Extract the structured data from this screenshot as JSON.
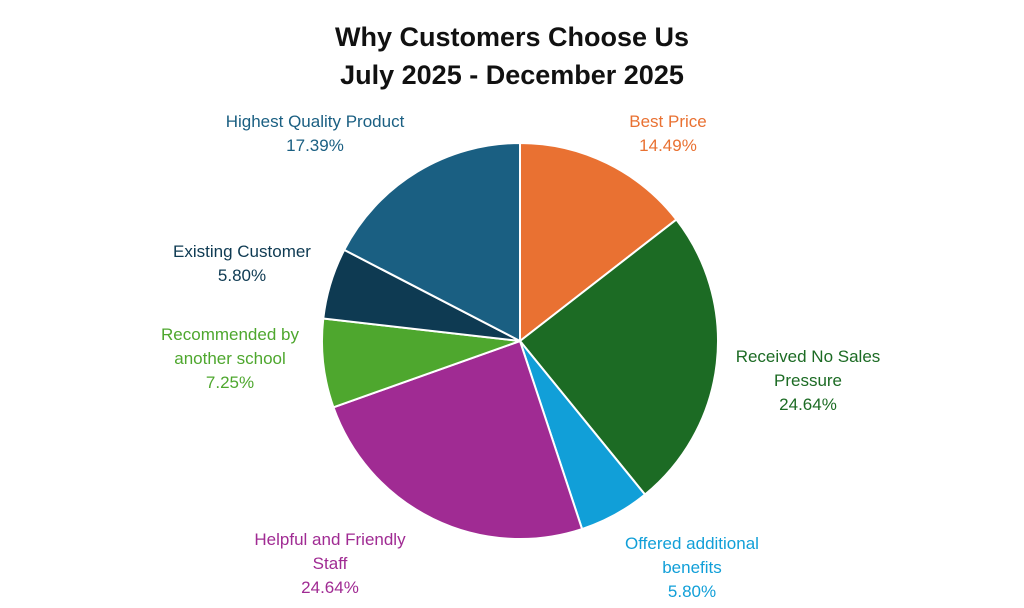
{
  "chart_data": {
    "type": "pie",
    "title": "Why Customers Choose Us",
    "subtitle": "July 2025 - December 2025",
    "slices": [
      {
        "label": [
          "Best Price"
        ],
        "value": 14.49,
        "value_label": "14.49%",
        "color": "#E97132"
      },
      {
        "label": [
          "Received No Sales",
          "Pressure"
        ],
        "value": 24.64,
        "value_label": "24.64%",
        "color": "#1C6B24"
      },
      {
        "label": [
          "Offered additional",
          "benefits"
        ],
        "value": 5.8,
        "value_label": "5.80%",
        "color": "#119FD8"
      },
      {
        "label": [
          "Helpful and Friendly",
          "Staff"
        ],
        "value": 24.64,
        "value_label": "24.64%",
        "color": "#A02B93"
      },
      {
        "label": [
          "Recommended by",
          "another school"
        ],
        "value": 7.25,
        "value_label": "7.25%",
        "color": "#4EA72E"
      },
      {
        "label": [
          "Existing Customer"
        ],
        "value": 5.8,
        "value_label": "5.80%",
        "color": "#0E3A52"
      },
      {
        "label": [
          "Highest Quality Product"
        ],
        "value": 17.39,
        "value_label": "17.39%",
        "color": "#1A5F82"
      }
    ],
    "start": "top",
    "direction": "clockwise",
    "legend": "none"
  }
}
